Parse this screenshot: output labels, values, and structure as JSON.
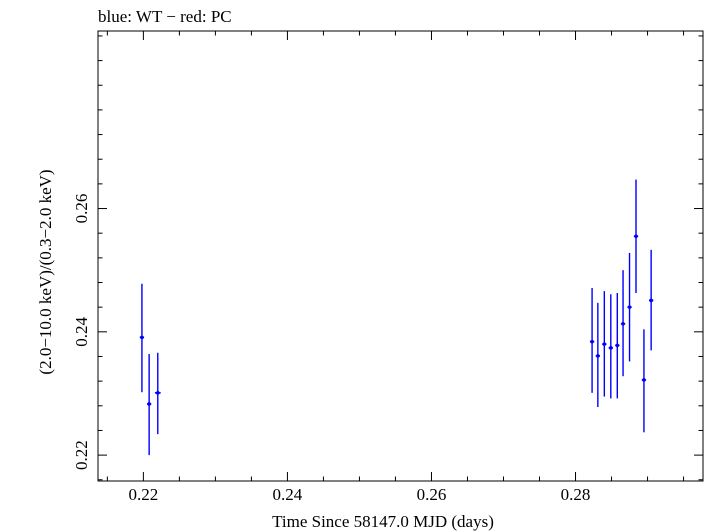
{
  "chart_data": {
    "type": "scatter",
    "title": "blue: WT − red: PC",
    "xlabel": "Time Since 58147.0 MJD (days)",
    "ylabel": "(2.0−10.0 keV)/(0.3−2.0 keV)",
    "xlim": [
      0.2137,
      0.2977
    ],
    "ylim": [
      0.2158,
      0.2888
    ],
    "x_ticks": [
      0.22,
      0.24,
      0.26,
      0.28
    ],
    "x_tick_labels": [
      "0.22",
      "0.24",
      "0.26",
      "0.28"
    ],
    "y_ticks": [
      0.22,
      0.24,
      0.26
    ],
    "y_tick_labels": [
      "0.22",
      "0.24",
      "0.26"
    ],
    "series": [
      {
        "name": "WT",
        "color": "#0000ff",
        "points": [
          {
            "x": 0.2198,
            "y": 0.2391,
            "ylo": 0.2302,
            "yhi": 0.2478,
            "xerr": 0.0003
          },
          {
            "x": 0.2208,
            "y": 0.2283,
            "ylo": 0.22,
            "yhi": 0.2364,
            "xerr": 0.0003
          },
          {
            "x": 0.222,
            "y": 0.2301,
            "ylo": 0.2234,
            "yhi": 0.2366,
            "xerr": 0.0004
          },
          {
            "x": 0.2823,
            "y": 0.2384,
            "ylo": 0.2301,
            "yhi": 0.2471,
            "xerr": 0.0003
          },
          {
            "x": 0.2831,
            "y": 0.2361,
            "ylo": 0.2278,
            "yhi": 0.2447,
            "xerr": 0.0003
          },
          {
            "x": 0.284,
            "y": 0.238,
            "ylo": 0.2295,
            "yhi": 0.2466,
            "xerr": 0.0003
          },
          {
            "x": 0.2849,
            "y": 0.2374,
            "ylo": 0.2292,
            "yhi": 0.2461,
            "xerr": 0.0003
          },
          {
            "x": 0.2858,
            "y": 0.2378,
            "ylo": 0.2292,
            "yhi": 0.2463,
            "xerr": 0.0003
          },
          {
            "x": 0.2866,
            "y": 0.2413,
            "ylo": 0.2328,
            "yhi": 0.25,
            "xerr": 0.0003
          },
          {
            "x": 0.2875,
            "y": 0.244,
            "ylo": 0.2352,
            "yhi": 0.2528,
            "xerr": 0.0003
          },
          {
            "x": 0.2884,
            "y": 0.2555,
            "ylo": 0.2463,
            "yhi": 0.2647,
            "xerr": 0.0003
          },
          {
            "x": 0.2895,
            "y": 0.2322,
            "ylo": 0.2237,
            "yhi": 0.2404,
            "xerr": 0.0003
          },
          {
            "x": 0.2905,
            "y": 0.2451,
            "ylo": 0.237,
            "yhi": 0.2533,
            "xerr": 0.0003
          }
        ]
      }
    ],
    "grid": false,
    "legend": "none"
  }
}
